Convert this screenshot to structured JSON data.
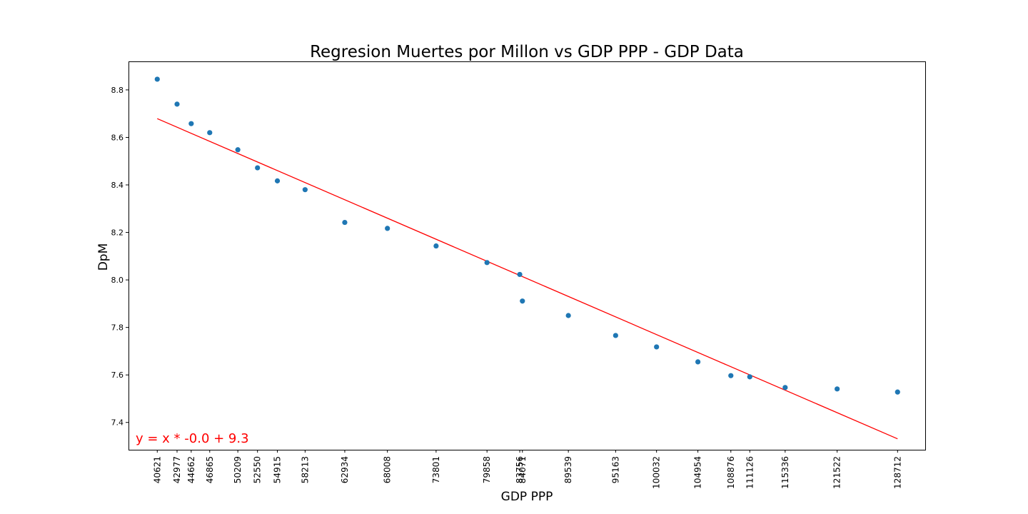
{
  "chart_data": {
    "type": "scatter",
    "title": "Regresion Muertes por Millon vs GDP PPP - GDP Data",
    "xlabel": "GDP PPP",
    "ylabel": "DpM",
    "xlim": [
      37200,
      132000
    ],
    "ylim": [
      7.285,
      8.92
    ],
    "yticks": [
      7.4,
      7.6,
      7.8,
      8.0,
      8.2,
      8.4,
      8.6,
      8.8
    ],
    "ytick_labels": [
      "7.4",
      "7.6",
      "7.8",
      "8.0",
      "8.2",
      "8.4",
      "8.6",
      "8.8"
    ],
    "xticks": [
      40621,
      42977,
      44662,
      46865,
      50209,
      52550,
      54915,
      58213,
      62934,
      68008,
      73801,
      79858,
      83756,
      84071,
      89539,
      95163,
      100032,
      104954,
      108876,
      111126,
      115336,
      121522,
      128712
    ],
    "xtick_labels": [
      "40621",
      "42977",
      "44662",
      "46865",
      "50209",
      "52550",
      "54915",
      "58213",
      "62934",
      "68008",
      "73801",
      "79858",
      "83756",
      "84071",
      "89539",
      "95163",
      "100032",
      "104954",
      "108876",
      "111126",
      "115336",
      "121522",
      "128712"
    ],
    "points": [
      {
        "x": 40621,
        "y": 8.845
      },
      {
        "x": 42977,
        "y": 8.74
      },
      {
        "x": 44662,
        "y": 8.658
      },
      {
        "x": 46865,
        "y": 8.62
      },
      {
        "x": 50209,
        "y": 8.548
      },
      {
        "x": 52550,
        "y": 8.472
      },
      {
        "x": 54915,
        "y": 8.417
      },
      {
        "x": 58213,
        "y": 8.38
      },
      {
        "x": 62934,
        "y": 8.242
      },
      {
        "x": 68008,
        "y": 8.217
      },
      {
        "x": 73801,
        "y": 8.143
      },
      {
        "x": 79858,
        "y": 8.073
      },
      {
        "x": 83756,
        "y": 8.023
      },
      {
        "x": 84071,
        "y": 7.911
      },
      {
        "x": 89539,
        "y": 7.85
      },
      {
        "x": 95163,
        "y": 7.766
      },
      {
        "x": 100032,
        "y": 7.718
      },
      {
        "x": 104954,
        "y": 7.655
      },
      {
        "x": 108876,
        "y": 7.597
      },
      {
        "x": 111126,
        "y": 7.592
      },
      {
        "x": 115336,
        "y": 7.547
      },
      {
        "x": 121522,
        "y": 7.541
      },
      {
        "x": 128712,
        "y": 7.528
      }
    ],
    "regression_line": {
      "x": [
        40621,
        128712
      ],
      "y": [
        8.679,
        7.331
      ]
    },
    "annotation": "y = x * -0.0 + 9.3",
    "grid": false,
    "legend": "none",
    "colors": {
      "points": "#1f77b4",
      "line": "#ff0000",
      "annotation": "#ff0000",
      "axes": "#000000"
    }
  }
}
